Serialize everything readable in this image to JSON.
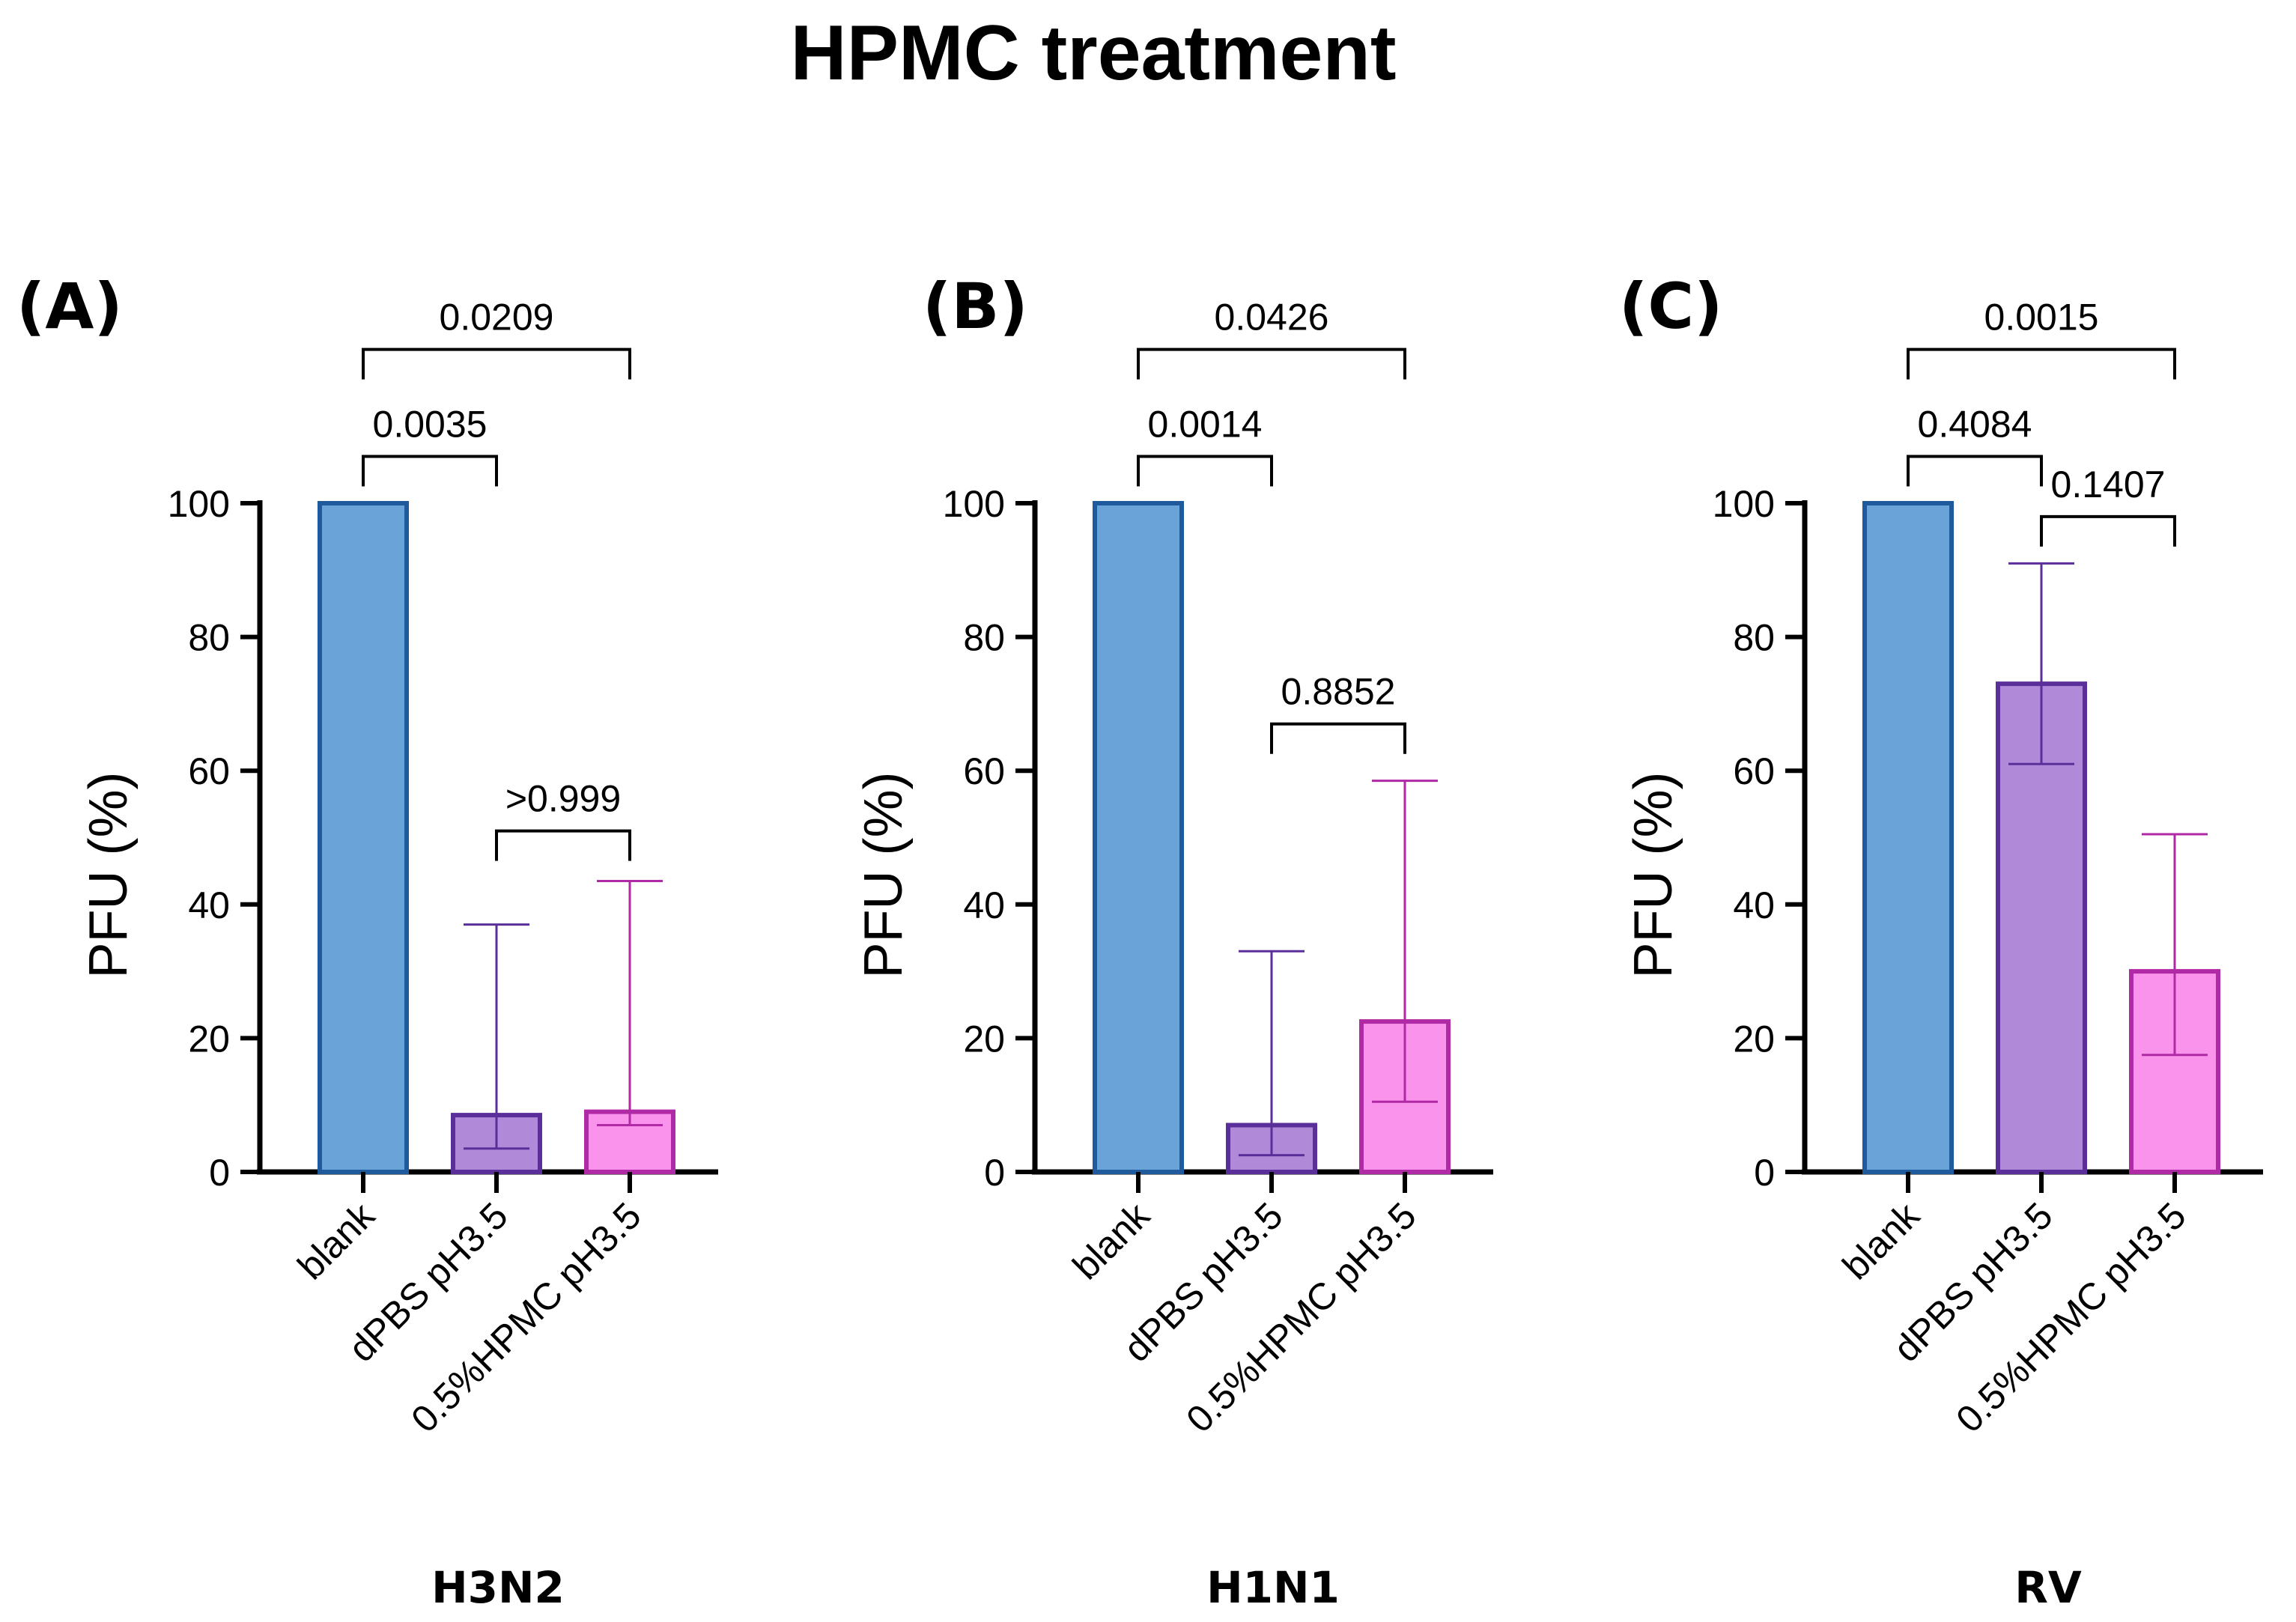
{
  "title": "HPMC treatment",
  "colors": {
    "blank": {
      "fill": "#6aa3d8",
      "stroke": "#1f5a9c"
    },
    "dpbs": {
      "fill": "#b08ad9",
      "stroke": "#5b2f9a"
    },
    "hpmc": {
      "fill": "#fa93ec",
      "stroke": "#b02aa5"
    },
    "axis": "#000000",
    "bracket": "#000000"
  },
  "chart_data": [
    {
      "panel": "(A)",
      "subtitle": "H3N2",
      "type": "bar",
      "ylabel": "PFU (%)",
      "ylim": [
        0,
        100
      ],
      "yticks": [
        0,
        20,
        40,
        60,
        80,
        100
      ],
      "categories": [
        "blank",
        "dPBS pH3.5",
        "0.5%HPMC pH3.5"
      ],
      "series_keys": [
        "blank",
        "dpbs",
        "hpmc"
      ],
      "values": [
        100,
        8.5,
        9
      ],
      "err_low": [
        100,
        3.5,
        7
      ],
      "err_high": [
        100,
        37,
        43.5
      ],
      "comparisons": [
        {
          "from": 0,
          "to": 1,
          "label": "0.0035",
          "y": 107,
          "top": 107
        },
        {
          "from": 0,
          "to": 2,
          "label": "0.0209",
          "y": 123,
          "top": 123
        },
        {
          "from": 1,
          "to": 2,
          "label": ">0.999",
          "y": 51,
          "top": 51
        }
      ]
    },
    {
      "panel": "(B)",
      "subtitle": "H1N1",
      "type": "bar",
      "ylabel": "PFU (%)",
      "ylim": [
        0,
        100
      ],
      "yticks": [
        0,
        20,
        40,
        60,
        80,
        100
      ],
      "categories": [
        "blank",
        "dPBS pH3.5",
        "0.5%HPMC pH3.5"
      ],
      "series_keys": [
        "blank",
        "dpbs",
        "hpmc"
      ],
      "values": [
        100,
        7,
        22.5
      ],
      "err_low": [
        100,
        2.5,
        10.5
      ],
      "err_high": [
        100,
        33,
        58.5
      ],
      "comparisons": [
        {
          "from": 0,
          "to": 1,
          "label": "0.0014",
          "y": 107,
          "top": 107
        },
        {
          "from": 0,
          "to": 2,
          "label": "0.0426",
          "y": 123,
          "top": 123
        },
        {
          "from": 1,
          "to": 2,
          "label": "0.8852",
          "y": 67,
          "top": 67
        }
      ]
    },
    {
      "panel": "(C)",
      "subtitle": "RV",
      "type": "bar",
      "ylabel": "PFU (%)",
      "ylim": [
        0,
        100
      ],
      "yticks": [
        0,
        20,
        40,
        60,
        80,
        100
      ],
      "categories": [
        "blank",
        "dPBS pH3.5",
        "0.5%HPMC pH3.5"
      ],
      "series_keys": [
        "blank",
        "dpbs",
        "hpmc"
      ],
      "values": [
        100,
        73,
        30
      ],
      "err_low": [
        100,
        61,
        17.5
      ],
      "err_high": [
        100,
        91,
        50.5
      ],
      "comparisons": [
        {
          "from": 0,
          "to": 1,
          "label": "0.4084",
          "y": 107,
          "top": 107
        },
        {
          "from": 0,
          "to": 2,
          "label": "0.0015",
          "y": 123,
          "top": 123
        },
        {
          "from": 1,
          "to": 2,
          "label": "0.1407",
          "y": 98,
          "top": 98
        }
      ]
    }
  ]
}
